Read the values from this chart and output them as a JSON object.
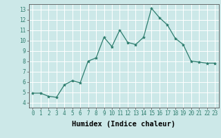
{
  "x": [
    0,
    1,
    2,
    3,
    4,
    5,
    6,
    7,
    8,
    9,
    10,
    11,
    12,
    13,
    14,
    15,
    16,
    17,
    18,
    19,
    20,
    21,
    22,
    23
  ],
  "y": [
    4.9,
    4.9,
    4.6,
    4.5,
    5.7,
    6.1,
    5.9,
    8.0,
    8.3,
    10.3,
    9.4,
    11.0,
    9.8,
    9.6,
    10.3,
    13.1,
    12.2,
    11.5,
    10.2,
    9.6,
    8.0,
    7.9,
    7.8,
    7.8
  ],
  "line_color": "#2e7d6e",
  "marker": "*",
  "marker_size": 3,
  "background_color": "#cce8e8",
  "grid_color": "#ffffff",
  "xlabel": "Humidex (Indice chaleur)",
  "xlim": [
    -0.5,
    23.5
  ],
  "ylim": [
    3.5,
    13.5
  ],
  "yticks": [
    4,
    5,
    6,
    7,
    8,
    9,
    10,
    11,
    12,
    13
  ],
  "xticks": [
    0,
    1,
    2,
    3,
    4,
    5,
    6,
    7,
    8,
    9,
    10,
    11,
    12,
    13,
    14,
    15,
    16,
    17,
    18,
    19,
    20,
    21,
    22,
    23
  ],
  "tick_fontsize": 5.5,
  "xlabel_fontsize": 7.5,
  "xlabel_fontweight": "bold"
}
